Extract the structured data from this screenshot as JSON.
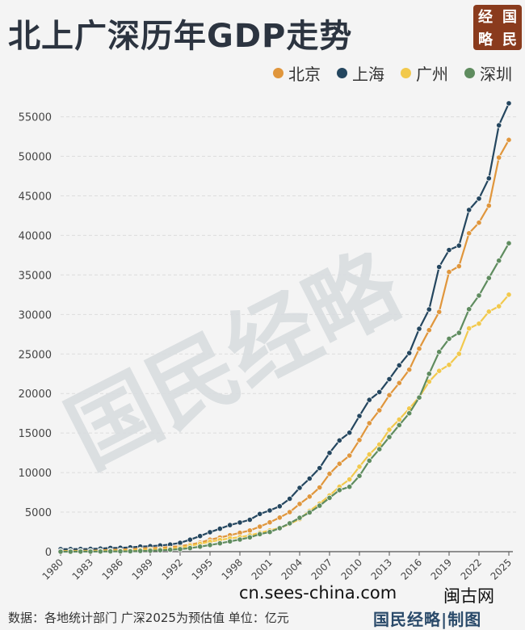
{
  "title": "北上广深历年GDP走势",
  "brand_chars": [
    "经",
    "国",
    "略",
    "民"
  ],
  "watermark_text": "国民经略",
  "footer": {
    "source": "数据：各地统计部门  广深2025为预估值 单位：亿元",
    "site": "cn.sees-china.com",
    "site2": "闽古网",
    "brand": "国民经略|制图"
  },
  "colors": {
    "北京": "#e0963c",
    "上海": "#24465f",
    "广州": "#f2c94c",
    "深圳": "#5f8c5f"
  },
  "chart_data": {
    "type": "line",
    "title": "北上广深历年GDP走势",
    "xlabel": "",
    "ylabel": "",
    "ylim": [
      0,
      57000
    ],
    "yticks": [
      0,
      5000,
      10000,
      15000,
      20000,
      25000,
      30000,
      35000,
      40000,
      45000,
      50000,
      55000
    ],
    "xticks": [
      1980,
      1983,
      1986,
      1989,
      1992,
      1995,
      1998,
      2001,
      2004,
      2007,
      2010,
      2013,
      2016,
      2019,
      2022,
      2025
    ],
    "grid": true,
    "legend_position": "top-right",
    "x": [
      1980,
      1981,
      1982,
      1983,
      1984,
      1985,
      1986,
      1987,
      1988,
      1989,
      1990,
      1991,
      1992,
      1993,
      1994,
      1995,
      1996,
      1997,
      1998,
      1999,
      2000,
      2001,
      2002,
      2003,
      2004,
      2005,
      2006,
      2007,
      2008,
      2009,
      2010,
      2011,
      2012,
      2013,
      2014,
      2015,
      2016,
      2017,
      2018,
      2019,
      2020,
      2021,
      2022,
      2023,
      2024,
      2025
    ],
    "series": [
      {
        "name": "北京",
        "values": [
          139,
          139,
          155,
          183,
          217,
          257,
          285,
          327,
          411,
          456,
          501,
          599,
          709,
          887,
          1145,
          1508,
          1790,
          2076,
          2377,
          2678,
          3162,
          3708,
          4315,
          5007,
          6033,
          6970,
          8118,
          9847,
          11115,
          12153,
          14114,
          16252,
          17879,
          19801,
          21331,
          23015,
          25669,
          28015,
          30320,
          35371,
          36103,
          40270,
          41611,
          43761,
          49843,
          52073
        ]
      },
      {
        "name": "上海",
        "values": [
          312,
          324,
          337,
          352,
          391,
          467,
          491,
          546,
          648,
          697,
          782,
          894,
          1114,
          1512,
          1972,
          2463,
          2903,
          3360,
          3688,
          4035,
          4771,
          5210,
          5741,
          6694,
          8073,
          9248,
          10572,
          12494,
          14069,
          15046,
          17166,
          19196,
          20182,
          21818,
          23568,
          25123,
          28179,
          30633,
          36012,
          38155,
          38701,
          43215,
          44653,
          47219,
          53927,
          56708
        ]
      },
      {
        "name": "广州",
        "values": [
          58,
          63,
          68,
          76,
          90,
          124,
          140,
          174,
          241,
          287,
          320,
          387,
          511,
          745,
          977,
          1260,
          1480,
          1680,
          1840,
          2060,
          2376,
          2686,
          3002,
          3497,
          4115,
          5154,
          6081,
          7109,
          8216,
          9138,
          10748,
          12303,
          13551,
          15420,
          16707,
          18100,
          19547,
          21503,
          22859,
          23629,
          25019,
          28232,
          28839,
          30355,
          31033,
          32500
        ]
      },
      {
        "name": "深圳",
        "values": [
          3,
          5,
          8,
          13,
          23,
          39,
          42,
          56,
          87,
          116,
          172,
          237,
          317,
          453,
          635,
          842,
          1048,
          1297,
          1535,
          1804,
          2219,
          2482,
          2969,
          3585,
          4282,
          4951,
          5813,
          6801,
          7787,
          8201,
          9581,
          11502,
          12950,
          14500,
          16002,
          17503,
          19492,
          22490,
          25266,
          26927,
          27670,
          30665,
          32388,
          34606,
          36802,
          39000
        ]
      }
    ]
  }
}
